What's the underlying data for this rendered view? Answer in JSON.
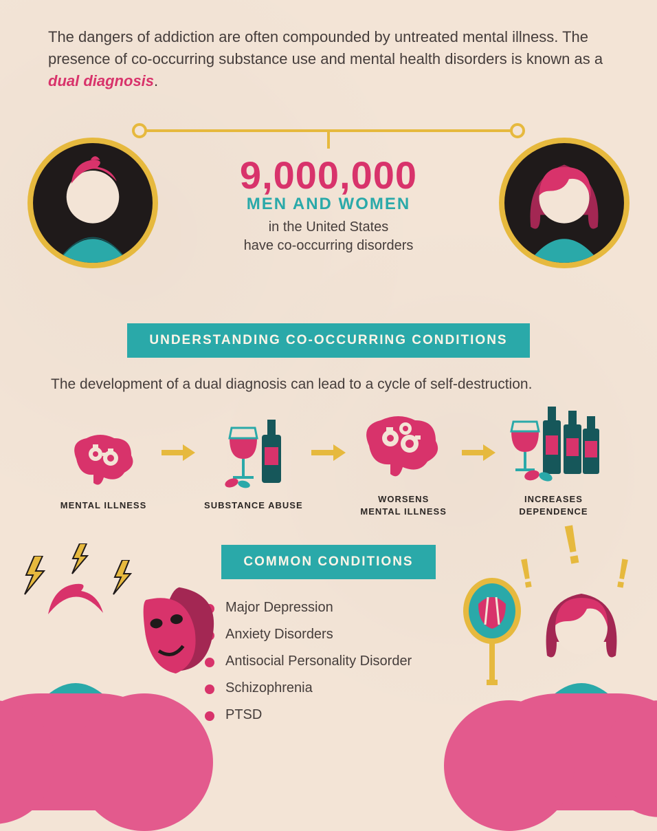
{
  "colors": {
    "pink": "#d8336b",
    "teal": "#2aa9a9",
    "yellow": "#e6b93e",
    "dark": "#1f1a1a",
    "text": "#453d3b",
    "skin": "#f3e4d6",
    "bannerText": "#fdf5e8",
    "bottleDark": "#16575a",
    "cloudPink": "#e35a8d"
  },
  "intro": {
    "text_before": "The dangers of addiction are often compounded by untreated mental illness. The presence of co-occurring substance use and mental health disorders is known as a ",
    "highlight": "dual diagnosis",
    "text_after": "."
  },
  "stat": {
    "number": "9,000,000",
    "sub1": "MEN AND WOMEN",
    "sub2_line1": "in the United States",
    "sub2_line2": "have co-occurring disorders"
  },
  "section1": {
    "banner": "UNDERSTANDING CO-OCCURRING CONDITIONS",
    "text": "The development of a dual diagnosis can lead to a cycle of self-destruction."
  },
  "cycle": [
    {
      "label": "MENTAL ILLNESS"
    },
    {
      "label": "SUBSTANCE ABUSE"
    },
    {
      "label": "WORSENS\nMENTAL ILLNESS"
    },
    {
      "label": "INCREASES\nDEPENDENCE"
    }
  ],
  "section2": {
    "banner": "COMMON CONDITIONS",
    "items": [
      "Major Depression",
      "Anxiety Disorders",
      "Antisocial Personality Disorder",
      "Schizophrenia",
      "PTSD"
    ]
  }
}
